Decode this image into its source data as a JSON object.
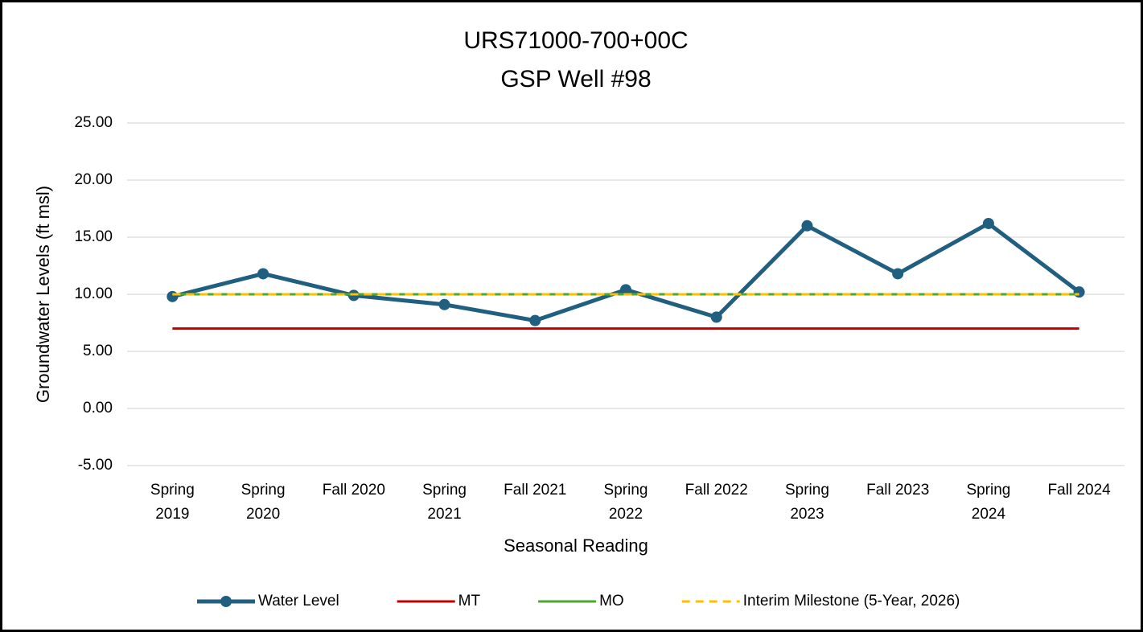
{
  "chart_data": {
    "type": "line",
    "title": "URS71000-700+00C",
    "subtitle": "GSP Well #98",
    "x_label": "Seasonal Reading",
    "y_label": "Groundwater Levels (ft msl)",
    "categories": [
      "Spring 2019",
      "Spring 2020",
      "Fall 2020",
      "Spring 2021",
      "Fall 2021",
      "Spring 2022",
      "Fall 2022",
      "Spring 2023",
      "Fall 2023",
      "Spring 2024",
      "Fall 2024"
    ],
    "series": [
      {
        "name": "Water Level",
        "color": "#215f80",
        "markers": true,
        "dashed": false,
        "values": [
          9.8,
          11.8,
          9.9,
          9.1,
          7.7,
          10.4,
          8.0,
          16.0,
          11.8,
          16.2,
          10.2
        ]
      },
      {
        "name": "MT",
        "color": "#c00000",
        "markers": false,
        "dashed": false,
        "values": [
          7.0,
          7.0,
          7.0,
          7.0,
          7.0,
          7.0,
          7.0,
          7.0,
          7.0,
          7.0,
          7.0
        ]
      },
      {
        "name": "MO",
        "color": "#4ea72e",
        "markers": false,
        "dashed": false,
        "values": [
          10.0,
          10.0,
          10.0,
          10.0,
          10.0,
          10.0,
          10.0,
          10.0,
          10.0,
          10.0,
          10.0
        ]
      },
      {
        "name": "Interim Milestone (5-Year, 2026)",
        "color": "#ffc000",
        "markers": false,
        "dashed": true,
        "values": [
          10.0,
          10.0,
          10.0,
          10.0,
          10.0,
          10.0,
          10.0,
          10.0,
          10.0,
          10.0,
          10.0
        ]
      }
    ],
    "ylim": [
      -5,
      25
    ],
    "yticks": [
      {
        "value": -5,
        "label": "-5.00"
      },
      {
        "value": 0,
        "label": "0.00"
      },
      {
        "value": 5,
        "label": "5.00"
      },
      {
        "value": 10,
        "label": "10.00"
      },
      {
        "value": 15,
        "label": "15.00"
      },
      {
        "value": 20,
        "label": "20.00"
      },
      {
        "value": 25,
        "label": "25.00"
      }
    ],
    "grid": true,
    "legend": "bottom"
  }
}
